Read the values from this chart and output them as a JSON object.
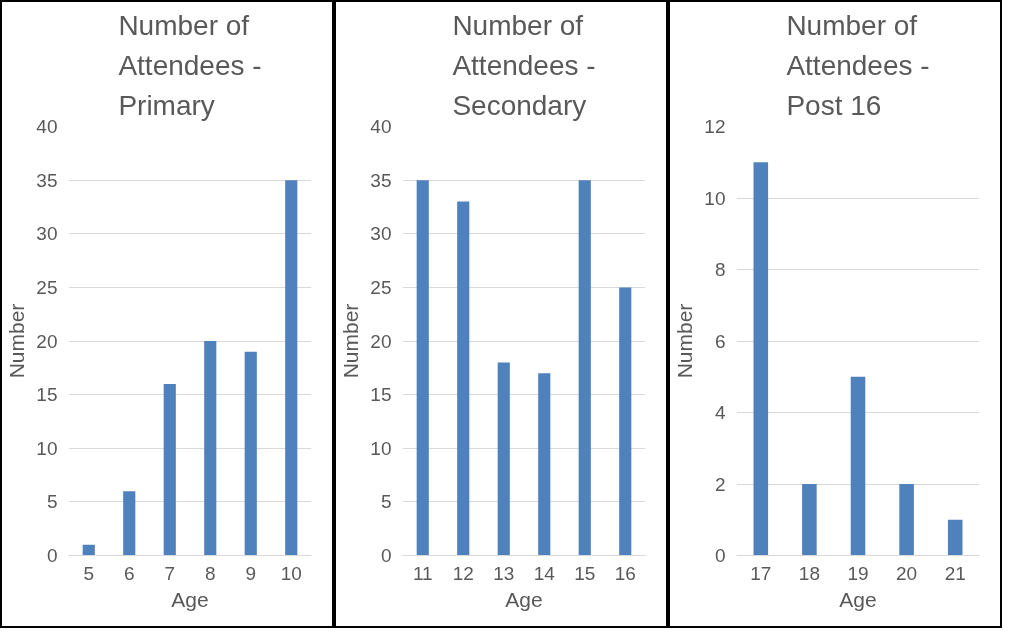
{
  "chart_data": [
    {
      "type": "bar",
      "title": "Number of Attendees - Primary",
      "xlabel": "Age",
      "ylabel": "Number",
      "categories": [
        "5",
        "6",
        "7",
        "8",
        "9",
        "10"
      ],
      "values": [
        1,
        6,
        16,
        20,
        19,
        35
      ],
      "color": "#4f81bd",
      "ylim": [
        0,
        40
      ],
      "yticks": [
        0,
        5,
        10,
        15,
        20,
        25,
        30,
        35,
        40
      ],
      "grid": "y"
    },
    {
      "type": "bar",
      "title": "Number of Attendees - Secondary",
      "xlabel": "Age",
      "ylabel": "Number",
      "categories": [
        "11",
        "12",
        "13",
        "14",
        "15",
        "16"
      ],
      "values": [
        35,
        33,
        18,
        17,
        35,
        25
      ],
      "color": "#4f81bd",
      "ylim": [
        0,
        40
      ],
      "yticks": [
        0,
        5,
        10,
        15,
        20,
        25,
        30,
        35,
        40
      ],
      "grid": "y"
    },
    {
      "type": "bar",
      "title": "Number of Attendees - Post 16",
      "xlabel": "Age",
      "ylabel": "Number",
      "categories": [
        "17",
        "18",
        "19",
        "20",
        "21"
      ],
      "values": [
        11,
        2,
        5,
        2,
        1
      ],
      "color": "#4f81bd",
      "ylim": [
        0,
        12
      ],
      "yticks": [
        0,
        2,
        4,
        6,
        8,
        10,
        12
      ],
      "grid": "y"
    }
  ]
}
